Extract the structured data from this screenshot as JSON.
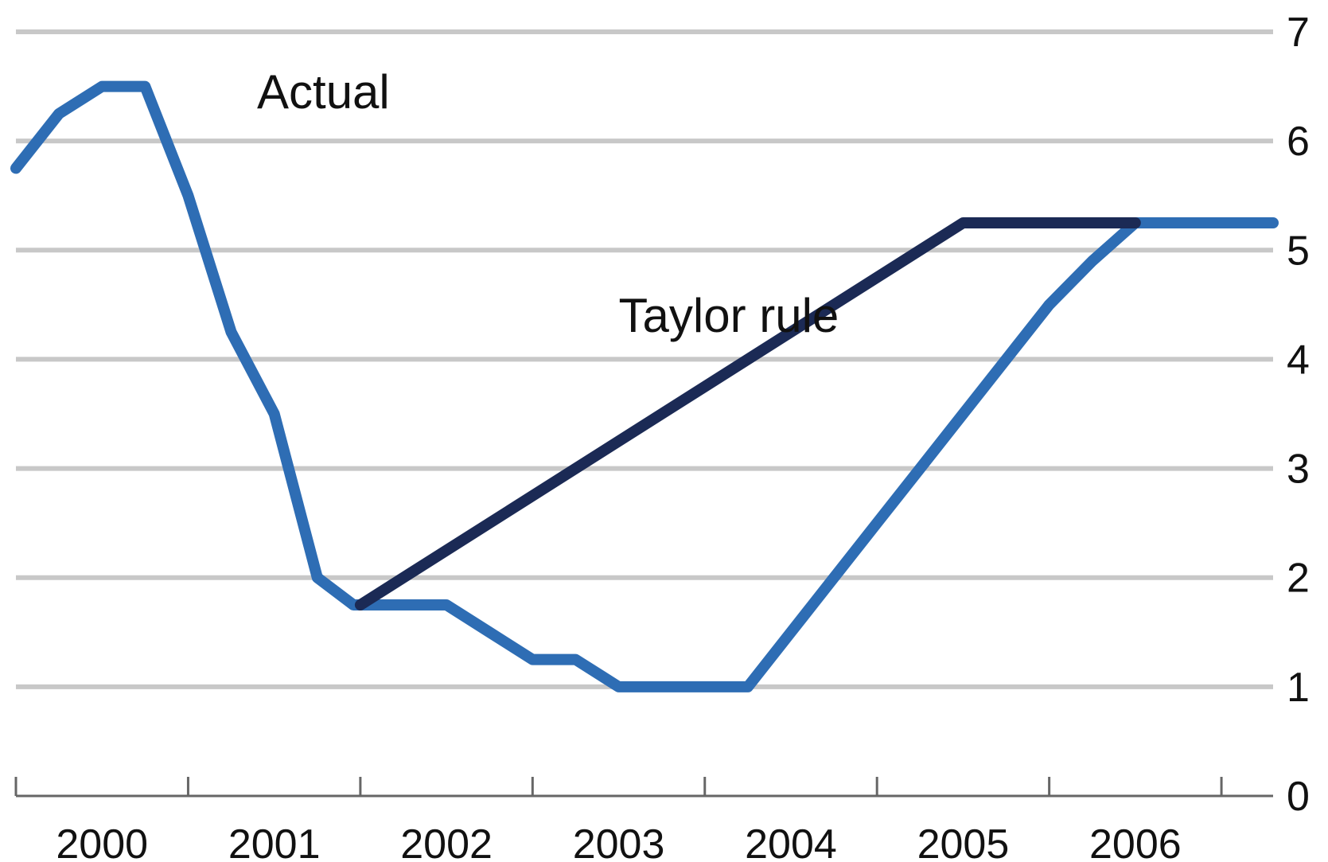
{
  "chart_data": {
    "type": "line",
    "title": "",
    "xlabel": "",
    "ylabel": "",
    "xlim": [
      2000.0,
      2007.3
    ],
    "ylim": [
      0,
      7
    ],
    "y_ticks": [
      0,
      1,
      2,
      3,
      4,
      5,
      6,
      7
    ],
    "y_tick_labels": [
      "0",
      "1",
      "2",
      "3",
      "4",
      "5",
      "6",
      "7"
    ],
    "x_tick_labels": [
      "2000",
      "2001",
      "2002",
      "2003",
      "2004",
      "2005",
      "2006"
    ],
    "grid": "horizontal",
    "y_axis_side": "right",
    "series": [
      {
        "name": "Actual",
        "color": "#2e6db4",
        "x": [
          2000.0,
          2000.25,
          2000.5,
          2000.75,
          2001.0,
          2001.25,
          2001.5,
          2001.75,
          2001.96,
          2002.25,
          2002.5,
          2002.75,
          2003.0,
          2003.25,
          2003.5,
          2003.75,
          2004.0,
          2004.25,
          2004.5,
          2004.75,
          2005.0,
          2005.25,
          2005.5,
          2005.75,
          2006.0,
          2006.25,
          2006.5,
          2006.75,
          2007.0,
          2007.3
        ],
        "values": [
          5.75,
          6.25,
          6.5,
          6.5,
          5.5,
          4.25,
          3.5,
          2.0,
          1.75,
          1.75,
          1.75,
          1.5,
          1.25,
          1.25,
          1.0,
          1.0,
          1.0,
          1.0,
          1.5,
          2.0,
          2.5,
          3.0,
          3.5,
          4.0,
          4.5,
          4.9,
          5.25,
          5.25,
          5.25,
          5.25
        ]
      },
      {
        "name": "Taylor rule",
        "color": "#1b2a55",
        "x": [
          2002.0,
          2005.5,
          2006.5
        ],
        "values": [
          1.75,
          5.25,
          5.25
        ]
      }
    ],
    "annotations": [
      {
        "text": "Actual",
        "x": 2001.4,
        "y": 6.3
      },
      {
        "text": "Taylor rule",
        "x": 2003.5,
        "y": 4.25
      }
    ]
  }
}
